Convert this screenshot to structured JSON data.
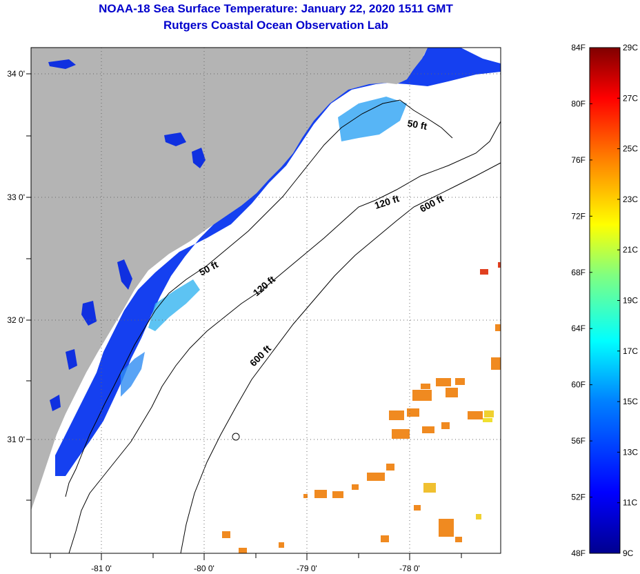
{
  "title": {
    "line1": "NOAA-18 Sea Surface Temperature:  January 22, 2020 1511 GMT",
    "line2": "Rutgers Coastal Ocean Observation Lab"
  },
  "map": {
    "lon_ticks": [
      "-81 0'",
      "-80 0'",
      "-79 0'",
      "-78 0'"
    ],
    "lat_ticks": [
      "34 0'",
      "33 0'",
      "32 0'",
      "31 0'"
    ],
    "contour_labels": [
      "50 ft",
      "50 ft",
      "120 ft",
      "120 ft",
      "600 ft",
      "600 ft"
    ],
    "colors": {
      "land": "#b4b4b4",
      "ocean_no_data": "#ffffff",
      "nearshore_water": "#1030f0",
      "shelf_water": "#38c8f0",
      "warm_patches": "#f08020"
    }
  },
  "colorbar": {
    "fahrenheit_labels": [
      "84F",
      "80F",
      "76F",
      "72F",
      "68F",
      "64F",
      "60F",
      "56F",
      "52F",
      "48F"
    ],
    "celsius_labels": [
      "29C",
      "27C",
      "25C",
      "23C",
      "21C",
      "19C",
      "17C",
      "15C",
      "13C",
      "11C",
      "9C"
    ],
    "range_f": [
      48,
      84
    ],
    "range_c": [
      9,
      29
    ],
    "gradient": [
      "#00008f",
      "#0000ff",
      "#0080ff",
      "#00ffff",
      "#80ff80",
      "#ffff00",
      "#ff8000",
      "#ff0000",
      "#800000"
    ]
  }
}
